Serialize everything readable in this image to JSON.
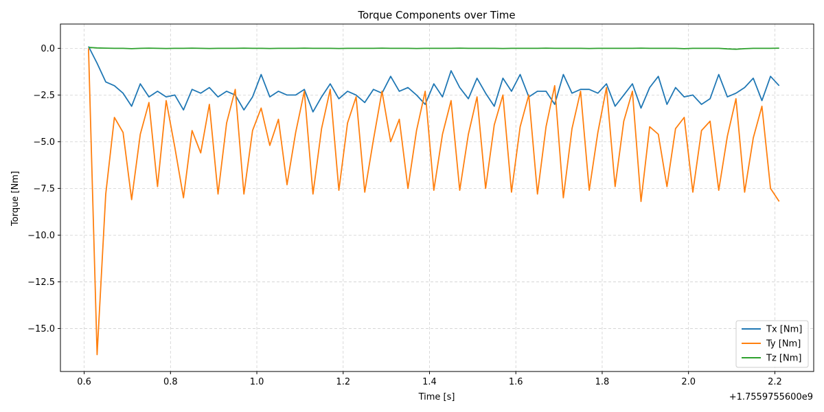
{
  "chart_data": {
    "type": "line",
    "title": "Torque Components over Time",
    "xlabel": "Time [s]",
    "ylabel": "Torque [Nm]",
    "x_offset_label": "+1.7559755600e9",
    "xlim": [
      0.545,
      2.29
    ],
    "ylim": [
      -17.3,
      1.3
    ],
    "x_ticks": [
      0.6,
      0.8,
      1.0,
      1.2,
      1.4,
      1.6,
      1.8,
      2.0,
      2.2
    ],
    "x_tick_labels": [
      "0.6",
      "0.8",
      "1.0",
      "1.2",
      "1.4",
      "1.6",
      "1.8",
      "2.0",
      "2.2"
    ],
    "y_ticks": [
      0.0,
      -2.5,
      -5.0,
      -7.5,
      -10.0,
      -12.5,
      -15.0
    ],
    "y_tick_labels": [
      "0.0",
      "−2.5",
      "−5.0",
      "−7.5",
      "−10.0",
      "−12.5",
      "−15.0"
    ],
    "grid": true,
    "legend_position": "bottom-right",
    "x": [
      0.61,
      0.63,
      0.65,
      0.67,
      0.69,
      0.71,
      0.73,
      0.75,
      0.77,
      0.79,
      0.81,
      0.83,
      0.85,
      0.87,
      0.89,
      0.91,
      0.93,
      0.95,
      0.97,
      0.99,
      1.01,
      1.03,
      1.05,
      1.07,
      1.09,
      1.11,
      1.13,
      1.15,
      1.17,
      1.19,
      1.21,
      1.23,
      1.25,
      1.27,
      1.29,
      1.31,
      1.33,
      1.35,
      1.37,
      1.39,
      1.41,
      1.43,
      1.45,
      1.47,
      1.49,
      1.51,
      1.53,
      1.55,
      1.57,
      1.59,
      1.61,
      1.63,
      1.65,
      1.67,
      1.69,
      1.71,
      1.73,
      1.75,
      1.77,
      1.79,
      1.81,
      1.83,
      1.85,
      1.87,
      1.89,
      1.91,
      1.93,
      1.95,
      1.97,
      1.99,
      2.01,
      2.03,
      2.05,
      2.07,
      2.09,
      2.11,
      2.13,
      2.15,
      2.17,
      2.19,
      2.21
    ],
    "series": [
      {
        "name": "Tx [Nm]",
        "color": "#1f77b4",
        "values": [
          0.1,
          -0.8,
          -1.8,
          -2.0,
          -2.4,
          -3.1,
          -1.9,
          -2.6,
          -2.3,
          -2.6,
          -2.5,
          -3.3,
          -2.2,
          -2.4,
          -2.1,
          -2.6,
          -2.3,
          -2.5,
          -3.3,
          -2.6,
          -1.4,
          -2.6,
          -2.3,
          -2.5,
          -2.5,
          -2.2,
          -3.4,
          -2.6,
          -1.9,
          -2.7,
          -2.3,
          -2.5,
          -2.9,
          -2.2,
          -2.4,
          -1.5,
          -2.3,
          -2.1,
          -2.5,
          -3.0,
          -1.9,
          -2.6,
          -1.2,
          -2.1,
          -2.7,
          -1.6,
          -2.4,
          -3.1,
          -1.6,
          -2.3,
          -1.4,
          -2.6,
          -2.3,
          -2.3,
          -3.0,
          -1.4,
          -2.4,
          -2.2,
          -2.2,
          -2.4,
          -1.9,
          -3.1,
          -2.5,
          -1.9,
          -3.2,
          -2.1,
          -1.5,
          -3.0,
          -2.1,
          -2.6,
          -2.5,
          -3.0,
          -2.7,
          -1.4,
          -2.6,
          -2.4,
          -2.1,
          -1.6,
          -2.8,
          -1.5,
          -2.0
        ]
      },
      {
        "name": "Ty [Nm]",
        "color": "#ff7f0e",
        "values": [
          0.0,
          -16.4,
          -7.8,
          -3.7,
          -4.5,
          -8.1,
          -4.6,
          -2.9,
          -7.4,
          -2.8,
          -5.3,
          -8.0,
          -4.4,
          -5.6,
          -3.0,
          -7.8,
          -4.0,
          -2.2,
          -7.8,
          -4.4,
          -3.2,
          -5.2,
          -3.8,
          -7.3,
          -4.5,
          -2.3,
          -7.8,
          -4.3,
          -2.2,
          -7.6,
          -4.0,
          -2.6,
          -7.7,
          -4.9,
          -2.3,
          -5.0,
          -3.8,
          -7.5,
          -4.4,
          -2.3,
          -7.6,
          -4.6,
          -2.8,
          -7.6,
          -4.6,
          -2.6,
          -7.5,
          -4.1,
          -2.5,
          -7.7,
          -4.2,
          -2.5,
          -7.8,
          -4.2,
          -2.0,
          -8.0,
          -4.3,
          -2.3,
          -7.6,
          -4.5,
          -2.1,
          -7.4,
          -3.9,
          -2.3,
          -8.2,
          -4.2,
          -4.6,
          -7.4,
          -4.3,
          -3.7,
          -7.7,
          -4.4,
          -3.9,
          -7.6,
          -4.7,
          -2.7,
          -7.7,
          -4.8,
          -3.1,
          -7.5,
          -8.2
        ]
      },
      {
        "name": "Tz [Nm]",
        "color": "#2ca02c",
        "values": [
          0.05,
          0.02,
          0.01,
          0.0,
          0.0,
          -0.02,
          0.0,
          0.01,
          0.0,
          -0.01,
          0.0,
          0.0,
          0.01,
          0.0,
          -0.01,
          0.0,
          0.0,
          0.0,
          0.01,
          0.0,
          0.0,
          -0.01,
          0.0,
          0.0,
          0.0,
          0.01,
          0.0,
          0.0,
          0.0,
          -0.01,
          0.0,
          0.0,
          0.0,
          0.0,
          0.01,
          0.0,
          0.0,
          0.0,
          -0.01,
          0.0,
          0.0,
          0.0,
          0.0,
          0.01,
          0.0,
          0.0,
          0.0,
          0.0,
          -0.01,
          0.0,
          0.0,
          0.0,
          0.0,
          0.01,
          0.0,
          0.0,
          0.0,
          0.0,
          -0.01,
          0.0,
          0.0,
          0.0,
          0.0,
          0.0,
          0.01,
          0.0,
          0.0,
          0.0,
          0.0,
          -0.02,
          0.0,
          0.0,
          0.0,
          0.0,
          -0.03,
          -0.05,
          -0.02,
          0.0,
          0.0,
          0.0,
          0.01
        ]
      }
    ]
  }
}
